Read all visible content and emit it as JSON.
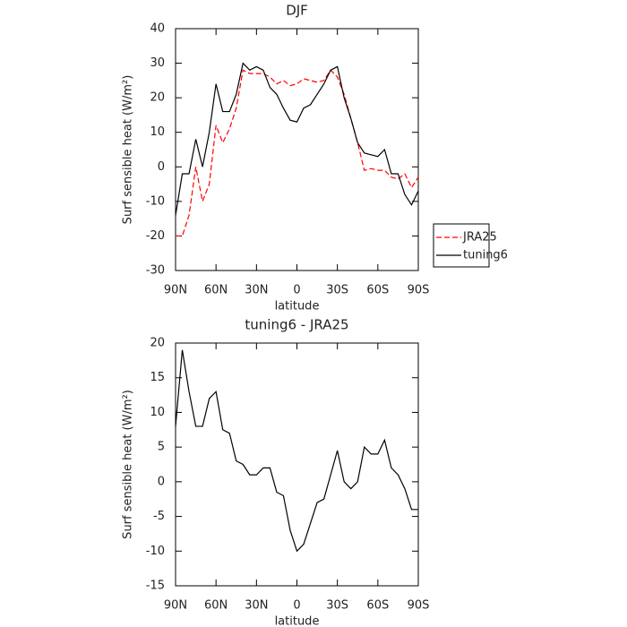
{
  "chart_data": [
    {
      "type": "line",
      "title": "DJF",
      "x_label": "latitude",
      "y_label": "Surf sensible heat (W/m²)",
      "x": [
        90,
        85,
        80,
        75,
        70,
        65,
        60,
        55,
        50,
        45,
        40,
        35,
        30,
        25,
        20,
        15,
        10,
        5,
        0,
        -5,
        -10,
        -15,
        -20,
        -25,
        -30,
        -35,
        -40,
        -45,
        -50,
        -55,
        -60,
        -65,
        -70,
        -75,
        -80,
        -85,
        -90
      ],
      "xlim": [
        90,
        -90
      ],
      "xticks": [
        {
          "value": 90,
          "label": "90N"
        },
        {
          "value": 60,
          "label": "60N"
        },
        {
          "value": 30,
          "label": "30N"
        },
        0,
        {
          "value": -30,
          "label": "30S"
        },
        {
          "value": -60,
          "label": "60S"
        },
        {
          "value": -90,
          "label": "90S"
        }
      ],
      "ylim": [
        -30,
        40
      ],
      "yticks": [
        -30,
        -20,
        -10,
        0,
        10,
        20,
        30,
        40
      ],
      "legend": "right",
      "series": [
        {
          "name": "JRA25",
          "color": "#ff0000",
          "linestyle": "dashed",
          "values": [
            -20,
            -20,
            -14,
            0,
            -10,
            -5,
            12,
            7,
            11,
            17,
            28,
            27,
            27,
            27,
            26,
            24,
            25,
            23.5,
            24,
            25.5,
            25,
            24.5,
            25,
            28,
            26,
            21,
            14,
            7,
            -1,
            -0.5,
            -1,
            -1,
            -3,
            -3.5,
            -2,
            -6,
            -3
          ]
        },
        {
          "name": "tuning6",
          "color": "#000000",
          "linestyle": "solid",
          "values": [
            -14,
            -2,
            -2,
            8,
            0,
            10,
            24,
            16,
            16,
            21,
            30,
            28,
            29,
            28,
            23,
            21,
            17,
            13.5,
            13,
            17,
            18,
            21,
            24,
            28,
            29,
            20,
            14,
            7,
            4,
            3.5,
            3,
            5,
            -2,
            -2,
            -8,
            -11,
            -7
          ]
        }
      ]
    },
    {
      "type": "line",
      "title": "tuning6 - JRA25",
      "x_label": "latitude",
      "y_label": "Surf sensible heat (W/m²)",
      "x": [
        90,
        85,
        80,
        75,
        70,
        65,
        60,
        55,
        50,
        45,
        40,
        35,
        30,
        25,
        20,
        15,
        10,
        5,
        0,
        -5,
        -10,
        -15,
        -20,
        -25,
        -30,
        -35,
        -40,
        -45,
        -50,
        -55,
        -60,
        -65,
        -70,
        -75,
        -80,
        -85,
        -90
      ],
      "xlim": [
        90,
        -90
      ],
      "xticks": [
        {
          "value": 90,
          "label": "90N"
        },
        {
          "value": 60,
          "label": "60N"
        },
        {
          "value": 30,
          "label": "30N"
        },
        0,
        {
          "value": -30,
          "label": "30S"
        },
        {
          "value": -60,
          "label": "60S"
        },
        {
          "value": -90,
          "label": "90S"
        }
      ],
      "ylim": [
        -15,
        20
      ],
      "yticks": [
        -15,
        -10,
        -5,
        0,
        5,
        10,
        15,
        20
      ],
      "series": [
        {
          "color": "#000000",
          "linestyle": "solid",
          "values": [
            8,
            19,
            13,
            8,
            8,
            12,
            13,
            7.5,
            7,
            3,
            2.5,
            1,
            1,
            2,
            2,
            -1.5,
            -2,
            -7,
            -10,
            -9,
            -6,
            -3,
            -2.5,
            1,
            4.5,
            0,
            -1,
            0,
            5,
            4,
            4,
            6,
            2,
            1,
            -1,
            -4,
            -4
          ]
        }
      ]
    }
  ]
}
